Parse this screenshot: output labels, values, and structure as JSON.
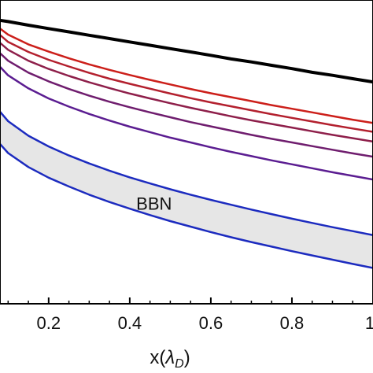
{
  "chart_data": {
    "type": "line",
    "xlabel": "x(λ_D)",
    "xlabel_main": "x(",
    "xlabel_symbol": "λ",
    "xlabel_sub": "D",
    "xlabel_close": ")",
    "xlim": [
      0.08,
      1.0
    ],
    "ylim": [
      0,
      1
    ],
    "x_ticks": [
      0.2,
      0.4,
      0.6,
      0.8,
      1.0
    ],
    "x_tick_labels": [
      "0.2",
      "0.4",
      "0.6",
      "0.8",
      "1"
    ],
    "grid": false,
    "x": [
      0.08,
      0.1,
      0.15,
      0.2,
      0.25,
      0.3,
      0.35,
      0.4,
      0.45,
      0.5,
      0.55,
      0.6,
      0.65,
      0.7,
      0.75,
      0.8,
      0.85,
      0.9,
      0.95,
      1.0
    ],
    "series": [
      {
        "color": "#000000",
        "values": [
          0.933,
          0.929,
          0.917,
          0.906,
          0.895,
          0.884,
          0.873,
          0.862,
          0.851,
          0.84,
          0.829,
          0.818,
          0.806,
          0.796,
          0.785,
          0.774,
          0.762,
          0.752,
          0.741,
          0.73
        ]
      },
      {
        "color": "#cc1f1a",
        "values": [
          0.906,
          0.886,
          0.854,
          0.83,
          0.808,
          0.788,
          0.77,
          0.753,
          0.737,
          0.722,
          0.707,
          0.693,
          0.68,
          0.667,
          0.654,
          0.642,
          0.63,
          0.618,
          0.606,
          0.595
        ]
      },
      {
        "color": "#b3202e",
        "values": [
          0.885,
          0.862,
          0.829,
          0.803,
          0.781,
          0.76,
          0.741,
          0.724,
          0.708,
          0.692,
          0.677,
          0.663,
          0.65,
          0.637,
          0.624,
          0.612,
          0.6,
          0.588,
          0.577,
          0.566
        ]
      },
      {
        "color": "#8e1f4a",
        "values": [
          0.859,
          0.836,
          0.8,
          0.773,
          0.75,
          0.729,
          0.71,
          0.692,
          0.676,
          0.66,
          0.645,
          0.631,
          0.617,
          0.604,
          0.592,
          0.58,
          0.568,
          0.556,
          0.545,
          0.534
        ]
      },
      {
        "color": "#6f1d6e",
        "values": [
          0.825,
          0.8,
          0.761,
          0.732,
          0.707,
          0.685,
          0.665,
          0.647,
          0.63,
          0.614,
          0.598,
          0.584,
          0.57,
          0.556,
          0.543,
          0.531,
          0.519,
          0.507,
          0.495,
          0.484
        ]
      },
      {
        "color": "#5b1d91",
        "values": [
          0.78,
          0.752,
          0.709,
          0.676,
          0.649,
          0.625,
          0.603,
          0.583,
          0.565,
          0.547,
          0.531,
          0.515,
          0.5,
          0.486,
          0.472,
          0.459,
          0.446,
          0.433,
          0.421,
          0.409
        ]
      },
      {
        "color": "#1c2bbf",
        "values": [
          0.632,
          0.601,
          0.553,
          0.518,
          0.488,
          0.462,
          0.438,
          0.416,
          0.396,
          0.377,
          0.359,
          0.342,
          0.326,
          0.31,
          0.295,
          0.28,
          0.266,
          0.252,
          0.239,
          0.226
        ]
      },
      {
        "color": "#1c2bbf",
        "values": [
          0.526,
          0.496,
          0.45,
          0.415,
          0.386,
          0.359,
          0.335,
          0.313,
          0.292,
          0.272,
          0.254,
          0.236,
          0.219,
          0.203,
          0.188,
          0.173,
          0.159,
          0.145,
          0.131,
          0.118
        ]
      }
    ],
    "band": {
      "between": [
        6,
        7
      ],
      "fill": "#e6e6e6",
      "label": "BBN",
      "label_x": 0.46,
      "label_y": 0.33
    }
  }
}
